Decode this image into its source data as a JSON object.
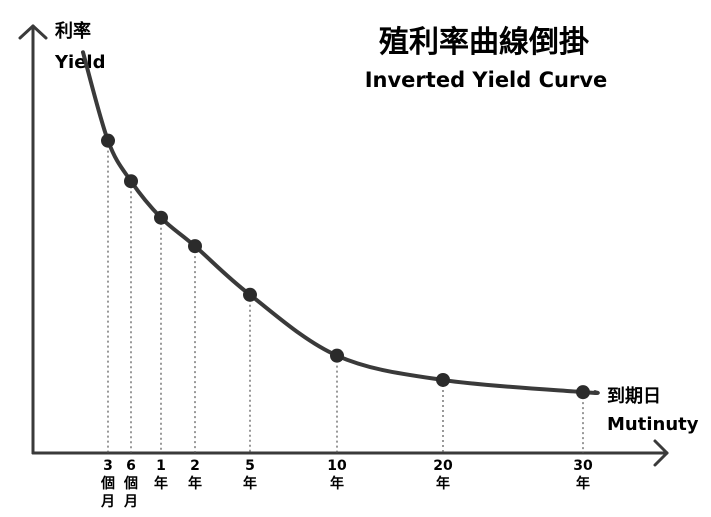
{
  "title": {
    "zh": "殖利率曲線倒掛",
    "en": "Inverted Yield Curve"
  },
  "y_axis": {
    "zh": "利率",
    "en": "Yield"
  },
  "x_axis": {
    "zh": "到期日",
    "en": "Mutinuty"
  },
  "chart_data": {
    "type": "line",
    "title": "殖利率曲線倒掛 Inverted Yield Curve",
    "xlabel": "到期日 Mutinuty",
    "ylabel": "利率 Yield",
    "grid": false,
    "maturities": [
      {
        "months": 3,
        "label": [
          "3",
          "個",
          "月"
        ],
        "yield": 0.77
      },
      {
        "months": 6,
        "label": [
          "6",
          "個",
          "月"
        ],
        "yield": 0.67
      },
      {
        "months": 12,
        "label": [
          "1",
          "年"
        ],
        "yield": 0.58
      },
      {
        "months": 24,
        "label": [
          "2",
          "年"
        ],
        "yield": 0.51
      },
      {
        "months": 60,
        "label": [
          "5",
          "年"
        ],
        "yield": 0.39
      },
      {
        "months": 120,
        "label": [
          "10",
          "年"
        ],
        "yield": 0.24
      },
      {
        "months": 240,
        "label": [
          "20",
          "年"
        ],
        "yield": 0.18
      },
      {
        "months": 360,
        "label": [
          "30",
          "年"
        ],
        "yield": 0.15
      }
    ]
  }
}
